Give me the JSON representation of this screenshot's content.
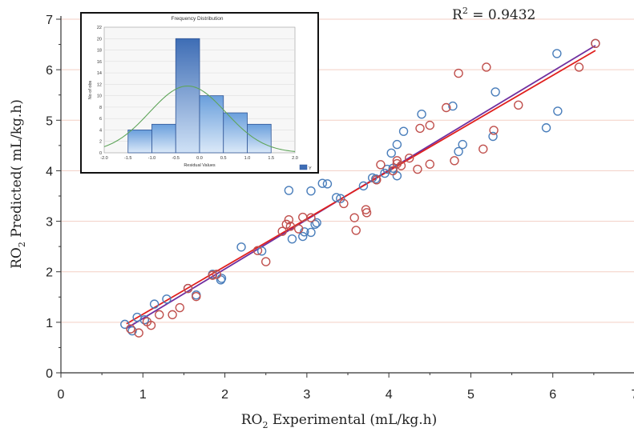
{
  "chart_data": [
    {
      "type": "scatter",
      "xlabel_main": "RO",
      "xlabel_sub": "2",
      "xlabel_rest": " Experimental (mL/kg.h)",
      "ylabel_main": "RO",
      "ylabel_sub": "2",
      "ylabel_rest": " Predicted( mL/kg.h)",
      "xlim": [
        0,
        7
      ],
      "ylim": [
        0,
        7
      ],
      "xticks": [
        "0",
        "1",
        "2",
        "3",
        "4",
        "5",
        "6",
        "7"
      ],
      "yticks": [
        "0",
        "1",
        "2",
        "3",
        "4",
        "5",
        "6",
        "7"
      ],
      "r2_prefix": "R",
      "r2_sup": "2",
      "r2_value": " = 0.9432",
      "grid": "horizontal",
      "colors": {
        "series_a": "#4a7ebb",
        "series_b": "#c0504d",
        "fit_a": "#7030a0",
        "fit_b": "#e0201e"
      },
      "series": [
        {
          "points": [
            [
              0.78,
              0.96
            ],
            [
              0.87,
              0.83
            ],
            [
              0.93,
              1.1
            ],
            [
              1.02,
              1.05
            ],
            [
              1.14,
              1.36
            ],
            [
              1.29,
              1.46
            ],
            [
              1.55,
              1.67
            ],
            [
              1.65,
              1.54
            ],
            [
              1.85,
              1.95
            ],
            [
              1.95,
              1.84
            ],
            [
              1.96,
              1.87
            ],
            [
              2.2,
              2.49
            ],
            [
              2.45,
              2.41
            ],
            [
              2.78,
              3.61
            ],
            [
              2.82,
              2.65
            ],
            [
              2.95,
              2.7
            ],
            [
              2.97,
              2.79
            ],
            [
              3.05,
              3.6
            ],
            [
              3.1,
              2.94
            ],
            [
              3.12,
              2.97
            ],
            [
              3.19,
              3.75
            ],
            [
              3.25,
              3.74
            ],
            [
              3.36,
              3.47
            ],
            [
              3.41,
              3.45
            ],
            [
              3.05,
              2.78
            ],
            [
              3.69,
              3.7
            ],
            [
              3.8,
              3.86
            ],
            [
              3.84,
              3.84
            ],
            [
              3.95,
              3.95
            ],
            [
              3.98,
              4.03
            ],
            [
              4.03,
              4.35
            ],
            [
              4.05,
              4.05
            ],
            [
              4.1,
              3.9
            ],
            [
              4.1,
              4.52
            ],
            [
              4.18,
              4.78
            ],
            [
              4.4,
              5.12
            ],
            [
              4.78,
              5.28
            ],
            [
              4.85,
              4.38
            ],
            [
              4.9,
              4.52
            ],
            [
              5.27,
              4.68
            ],
            [
              5.3,
              5.56
            ],
            [
              5.92,
              4.85
            ],
            [
              6.05,
              6.32
            ],
            [
              6.06,
              5.18
            ],
            [
              6.52,
              6.52
            ]
          ]
        },
        {
          "points": [
            [
              0.85,
              0.87
            ],
            [
              0.95,
              0.79
            ],
            [
              1.05,
              1.01
            ],
            [
              1.1,
              0.94
            ],
            [
              1.2,
              1.15
            ],
            [
              1.36,
              1.15
            ],
            [
              1.45,
              1.29
            ],
            [
              1.55,
              1.67
            ],
            [
              1.65,
              1.51
            ],
            [
              1.85,
              1.93
            ],
            [
              1.9,
              1.95
            ],
            [
              2.4,
              2.42
            ],
            [
              2.5,
              2.2
            ],
            [
              2.7,
              2.8
            ],
            [
              2.75,
              2.94
            ],
            [
              2.78,
              3.03
            ],
            [
              2.8,
              2.9
            ],
            [
              2.9,
              2.85
            ],
            [
              2.95,
              3.08
            ],
            [
              3.05,
              3.07
            ],
            [
              3.45,
              3.35
            ],
            [
              3.58,
              3.07
            ],
            [
              3.6,
              2.82
            ],
            [
              3.72,
              3.23
            ],
            [
              3.73,
              3.17
            ],
            [
              3.85,
              3.82
            ],
            [
              3.9,
              4.12
            ],
            [
              4.05,
              4.0
            ],
            [
              4.1,
              4.14
            ],
            [
              4.1,
              4.2
            ],
            [
              4.15,
              4.1
            ],
            [
              4.25,
              4.25
            ],
            [
              4.35,
              4.03
            ],
            [
              4.38,
              4.84
            ],
            [
              4.5,
              4.9
            ],
            [
              4.5,
              4.13
            ],
            [
              4.7,
              5.25
            ],
            [
              4.8,
              4.2
            ],
            [
              4.85,
              5.93
            ],
            [
              5.15,
              4.43
            ],
            [
              5.19,
              6.05
            ],
            [
              5.28,
              4.8
            ],
            [
              5.58,
              5.3
            ],
            [
              6.32,
              6.05
            ],
            [
              6.52,
              6.52
            ]
          ]
        }
      ],
      "fit_lines": [
        {
          "from": [
            0.8,
            0.88
          ],
          "to": [
            6.52,
            6.48
          ]
        },
        {
          "from": [
            0.8,
            0.97
          ],
          "to": [
            6.52,
            6.38
          ]
        }
      ]
    },
    {
      "type": "bar",
      "title": "Frequency Distribution",
      "xlabel": "Residual Values",
      "ylabel": "No of obs",
      "xlim": [
        -2.0,
        2.0
      ],
      "ylim": [
        0,
        22
      ],
      "xticks": [
        "-2.0",
        "-1.5",
        "-1.0",
        "-0.5",
        "0.0",
        "0.5",
        "1.0",
        "1.5",
        "2.0"
      ],
      "yticks": [
        "0",
        "2",
        "4",
        "6",
        "8",
        "10",
        "12",
        "14",
        "16",
        "18",
        "20",
        "22"
      ],
      "bins": [
        {
          "from": -1.5,
          "to": -1.0,
          "count": 4
        },
        {
          "from": -1.0,
          "to": -0.5,
          "count": 5
        },
        {
          "from": -0.5,
          "to": 0.0,
          "count": 20
        },
        {
          "from": 0.0,
          "to": 0.5,
          "count": 10
        },
        {
          "from": 0.5,
          "to": 1.0,
          "count": 7
        },
        {
          "from": 1.0,
          "to": 1.5,
          "count": 5
        }
      ],
      "normal_curve": {
        "mean": -0.25,
        "peak": 11.7,
        "sd": 0.8
      },
      "legend_label": "Y",
      "colors": {
        "bar": "#6a9fdc",
        "bar_highlight": "#3e6db5",
        "curve": "#5fa55a"
      }
    }
  ]
}
